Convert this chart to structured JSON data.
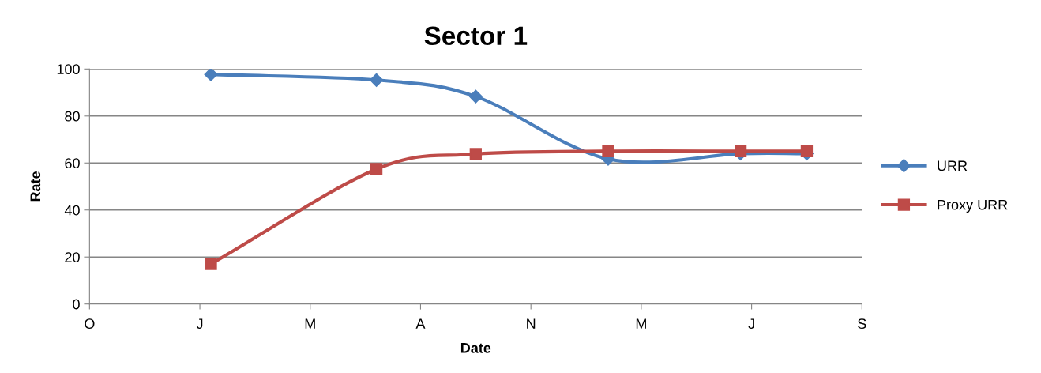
{
  "chart_data": {
    "type": "line",
    "title": "Sector 1",
    "xlabel": "Date",
    "ylabel": "Rate",
    "categories": [
      "O",
      null,
      null,
      null,
      null,
      null,
      null,
      null,
      null,
      null,
      "J",
      null,
      null,
      null,
      null,
      null,
      null,
      null,
      null,
      null,
      "M",
      null,
      null,
      null,
      null,
      null,
      null,
      null,
      null,
      null,
      "A",
      null,
      null,
      null,
      null,
      null,
      null,
      null,
      null,
      null,
      "N",
      null,
      null,
      null,
      null,
      null,
      null,
      null,
      null,
      null,
      "M",
      null,
      null,
      null,
      null,
      null,
      null,
      null,
      null,
      null,
      "J",
      null,
      null,
      null,
      null,
      null,
      null,
      null,
      null,
      null,
      "S"
    ],
    "ylim": [
      0,
      100
    ],
    "yticks": [
      0,
      20,
      40,
      60,
      80,
      100
    ],
    "grid": "y",
    "legend": "right",
    "line_style": "solid",
    "series": [
      {
        "name": "URR",
        "color": "#4a7ebb",
        "marker": "diamond",
        "values": [
          null,
          null,
          null,
          null,
          null,
          null,
          null,
          null,
          null,
          null,
          null,
          97.7,
          null,
          null,
          null,
          null,
          null,
          null,
          null,
          null,
          null,
          null,
          null,
          null,
          null,
          null,
          95.3,
          null,
          null,
          null,
          null,
          null,
          null,
          null,
          null,
          88.3,
          null,
          null,
          null,
          null,
          null,
          null,
          null,
          null,
          null,
          null,
          null,
          61.7,
          null,
          null,
          null,
          null,
          null,
          null,
          null,
          null,
          null,
          null,
          null,
          64,
          null,
          null,
          null,
          null,
          null,
          64,
          null,
          null,
          null,
          null,
          null
        ]
      },
      {
        "name": "Proxy URR",
        "color": "#be4b48",
        "marker": "square",
        "values": [
          null,
          null,
          null,
          null,
          null,
          null,
          null,
          null,
          null,
          null,
          null,
          17,
          null,
          null,
          null,
          null,
          null,
          null,
          null,
          null,
          null,
          null,
          null,
          null,
          null,
          null,
          57.4,
          null,
          null,
          null,
          null,
          null,
          null,
          null,
          null,
          63.8,
          null,
          null,
          null,
          null,
          null,
          null,
          null,
          null,
          null,
          null,
          null,
          65,
          null,
          null,
          null,
          null,
          null,
          null,
          null,
          null,
          null,
          null,
          null,
          65,
          null,
          null,
          null,
          null,
          null,
          65,
          null,
          null,
          null,
          null,
          null
        ]
      }
    ]
  }
}
